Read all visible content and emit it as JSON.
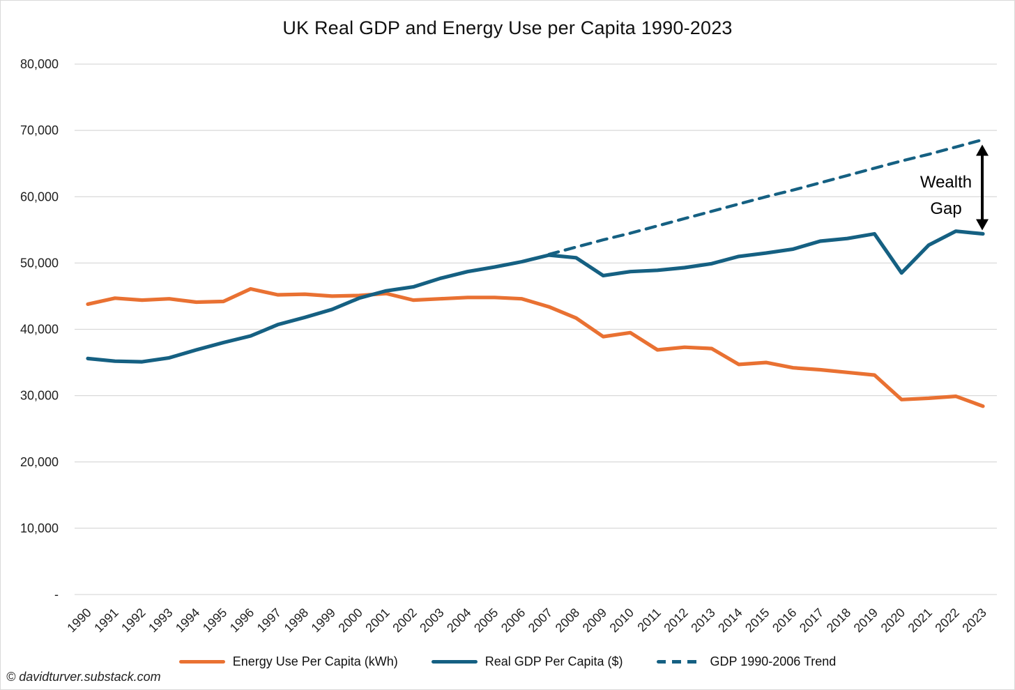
{
  "page": {
    "watermark": "© davidturver.substack.com"
  },
  "annotation": {
    "line1": "Wealth",
    "line2": "Gap"
  },
  "chart_data": {
    "type": "line",
    "title": "UK Real GDP and Energy Use per Capita 1990-2023",
    "xlabel": "",
    "ylabel": "",
    "categories": [
      "1990",
      "1991",
      "1992",
      "1993",
      "1994",
      "1995",
      "1996",
      "1997",
      "1998",
      "1999",
      "2000",
      "2001",
      "2002",
      "2003",
      "2004",
      "2005",
      "2006",
      "2007",
      "2008",
      "2009",
      "2010",
      "2011",
      "2012",
      "2013",
      "2014",
      "2015",
      "2016",
      "2017",
      "2018",
      "2019",
      "2020",
      "2021",
      "2022",
      "2023"
    ],
    "y_axis": {
      "min": 0,
      "max": 80000,
      "tick_interval": 10000,
      "tick_labels": [
        "-",
        "10,000",
        "20,000",
        "30,000",
        "40,000",
        "50,000",
        "60,000",
        "70,000",
        "80,000"
      ]
    },
    "grid": "horizontal",
    "gridline_color": "#d9d9d9",
    "legend_position": "bottom",
    "series": [
      {
        "name": "Energy Use Per Capita (kWh)",
        "color": "#E97132",
        "line_style": "solid",
        "values": [
          43800,
          44700,
          44400,
          44600,
          44100,
          44200,
          46100,
          45200,
          45300,
          45000,
          45100,
          45400,
          44400,
          44600,
          44800,
          44800,
          44600,
          43400,
          41700,
          38900,
          39500,
          36900,
          37300,
          37100,
          34700,
          35000,
          34200,
          33900,
          33500,
          33100,
          29400,
          29600,
          29900,
          28400
        ]
      },
      {
        "name": "Real GDP Per Capita ($)",
        "color": "#156082",
        "line_style": "solid",
        "values": [
          35600,
          35200,
          35100,
          35700,
          36900,
          38000,
          39000,
          40700,
          41800,
          43000,
          44700,
          45800,
          46400,
          47700,
          48700,
          49400,
          50200,
          51200,
          50800,
          48100,
          48700,
          48900,
          49300,
          49900,
          51000,
          51500,
          52100,
          53300,
          53700,
          54400,
          48500,
          52700,
          54800,
          54400
        ]
      },
      {
        "name": "GDP 1990-2006 Trend",
        "color": "#156082",
        "line_style": "dashed",
        "values": [
          null,
          null,
          null,
          null,
          null,
          null,
          null,
          null,
          null,
          null,
          null,
          null,
          null,
          null,
          null,
          null,
          null,
          51300,
          52400,
          53500,
          54500,
          55600,
          56700,
          57800,
          58900,
          60000,
          61000,
          62100,
          63200,
          64300,
          65400,
          66400,
          67500,
          68600
        ]
      }
    ],
    "annotation_note": "Wealth Gap — vertical double-headed arrow between the 2023 end of the GDP 1990-2006 trend line and the 2023 Real GDP per capita line"
  }
}
